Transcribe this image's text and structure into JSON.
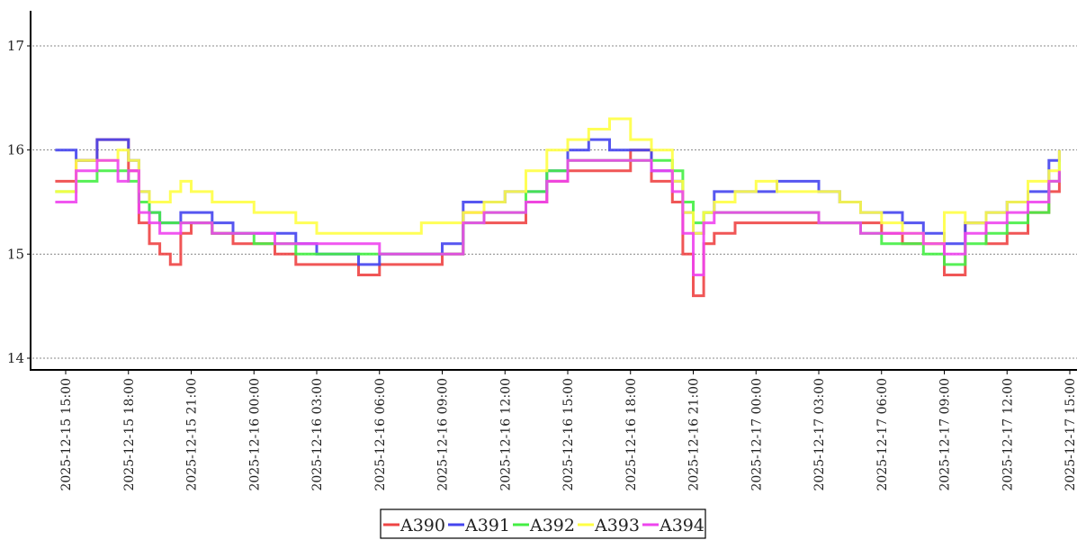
{
  "chart_data": {
    "type": "line",
    "xlabel": "",
    "ylabel": "",
    "ylim": [
      14,
      17.3
    ],
    "yticks": [
      "14",
      "15",
      "16",
      "17"
    ],
    "x_ticks": [
      "2025-12-15 15:00",
      "2025-12-15 18:00",
      "2025-12-15 21:00",
      "2025-12-16 00:00",
      "2025-12-16 03:00",
      "2025-12-16 06:00",
      "2025-12-16 09:00",
      "2025-12-16 12:00",
      "2025-12-16 15:00",
      "2025-12-16 18:00",
      "2025-12-16 21:00",
      "2025-12-17 00:00",
      "2025-12-17 03:00",
      "2025-12-17 06:00",
      "2025-12-17 09:00",
      "2025-12-17 12:00",
      "2025-12-17 15:00"
    ],
    "grid": true,
    "legend": "bottom-center",
    "x": [
      "2025-12-15 14:30",
      "2025-12-15 15:30",
      "2025-12-15 16:30",
      "2025-12-15 17:30",
      "2025-12-15 18:00",
      "2025-12-15 18:30",
      "2025-12-15 19:00",
      "2025-12-15 19:30",
      "2025-12-15 20:00",
      "2025-12-15 20:30",
      "2025-12-15 21:00",
      "2025-12-15 22:00",
      "2025-12-15 23:00",
      "2025-12-16 00:00",
      "2025-12-16 01:00",
      "2025-12-16 02:00",
      "2025-12-16 03:00",
      "2025-12-16 04:00",
      "2025-12-16 05:00",
      "2025-12-16 06:00",
      "2025-12-16 07:00",
      "2025-12-16 08:00",
      "2025-12-16 09:00",
      "2025-12-16 10:00",
      "2025-12-16 11:00",
      "2025-12-16 12:00",
      "2025-12-16 13:00",
      "2025-12-16 14:00",
      "2025-12-16 15:00",
      "2025-12-16 16:00",
      "2025-12-16 17:00",
      "2025-12-16 18:00",
      "2025-12-16 19:00",
      "2025-12-16 20:00",
      "2025-12-16 20:30",
      "2025-12-16 21:00",
      "2025-12-16 21:30",
      "2025-12-16 22:00",
      "2025-12-16 23:00",
      "2025-12-17 00:00",
      "2025-12-17 01:00",
      "2025-12-17 02:00",
      "2025-12-17 03:00",
      "2025-12-17 04:00",
      "2025-12-17 05:00",
      "2025-12-17 06:00",
      "2025-12-17 07:00",
      "2025-12-17 08:00",
      "2025-12-17 09:00",
      "2025-12-17 10:00",
      "2025-12-17 11:00",
      "2025-12-17 12:00",
      "2025-12-17 13:00",
      "2025-12-17 14:00",
      "2025-12-17 14:30"
    ],
    "series": [
      {
        "name": "A390",
        "color": "#ee4444",
        "values": [
          15.7,
          15.9,
          16.1,
          16.1,
          15.8,
          15.3,
          15.1,
          15.0,
          14.9,
          15.2,
          15.3,
          15.2,
          15.1,
          15.1,
          15.0,
          14.9,
          14.9,
          14.9,
          14.8,
          14.9,
          14.9,
          14.9,
          15.0,
          15.4,
          15.3,
          15.3,
          15.5,
          15.7,
          15.8,
          15.8,
          15.8,
          16.0,
          15.7,
          15.5,
          15.0,
          14.6,
          15.1,
          15.2,
          15.3,
          15.3,
          15.3,
          15.3,
          15.3,
          15.3,
          15.3,
          15.2,
          15.1,
          15.1,
          14.8,
          15.3,
          15.1,
          15.2,
          15.4,
          15.6,
          15.8
        ]
      },
      {
        "name": "A391",
        "color": "#4444ee",
        "values": [
          16.0,
          15.9,
          16.1,
          16.1,
          15.9,
          15.6,
          15.4,
          15.3,
          15.3,
          15.4,
          15.4,
          15.3,
          15.2,
          15.2,
          15.2,
          15.1,
          15.0,
          15.0,
          14.9,
          15.0,
          15.0,
          15.0,
          15.1,
          15.5,
          15.5,
          15.6,
          15.6,
          15.8,
          16.0,
          16.1,
          16.0,
          16.0,
          15.8,
          15.7,
          15.4,
          15.2,
          15.4,
          15.6,
          15.6,
          15.6,
          15.7,
          15.7,
          15.6,
          15.5,
          15.4,
          15.4,
          15.3,
          15.2,
          15.1,
          15.3,
          15.4,
          15.5,
          15.6,
          15.9,
          16.0
        ]
      },
      {
        "name": "A392",
        "color": "#44ee44",
        "values": [
          15.6,
          15.7,
          15.8,
          15.8,
          15.7,
          15.5,
          15.4,
          15.3,
          15.3,
          15.3,
          15.3,
          15.2,
          15.2,
          15.1,
          15.1,
          15.0,
          15.0,
          15.0,
          15.0,
          15.0,
          15.0,
          15.0,
          15.0,
          15.3,
          15.4,
          15.4,
          15.6,
          15.8,
          15.9,
          15.9,
          15.9,
          15.9,
          15.9,
          15.8,
          15.5,
          15.3,
          15.4,
          15.4,
          15.4,
          15.4,
          15.4,
          15.4,
          15.3,
          15.3,
          15.2,
          15.1,
          15.1,
          15.0,
          14.9,
          15.1,
          15.2,
          15.3,
          15.4,
          15.7,
          15.9
        ]
      },
      {
        "name": "A393",
        "color": "#ffff44",
        "values": [
          15.6,
          15.9,
          15.9,
          16.0,
          15.9,
          15.6,
          15.5,
          15.5,
          15.6,
          15.7,
          15.6,
          15.5,
          15.5,
          15.4,
          15.4,
          15.3,
          15.2,
          15.2,
          15.2,
          15.2,
          15.2,
          15.3,
          15.3,
          15.4,
          15.5,
          15.6,
          15.8,
          16.0,
          16.1,
          16.2,
          16.3,
          16.1,
          16.0,
          15.7,
          15.4,
          15.2,
          15.4,
          15.5,
          15.6,
          15.7,
          15.6,
          15.6,
          15.6,
          15.5,
          15.4,
          15.3,
          15.2,
          15.1,
          15.4,
          15.3,
          15.4,
          15.5,
          15.7,
          15.8,
          16.0
        ]
      },
      {
        "name": "A394",
        "color": "#ee44ee",
        "values": [
          15.5,
          15.8,
          15.9,
          15.7,
          15.8,
          15.4,
          15.3,
          15.2,
          15.2,
          15.3,
          15.3,
          15.2,
          15.2,
          15.2,
          15.1,
          15.1,
          15.1,
          15.1,
          15.1,
          15.0,
          15.0,
          15.0,
          15.0,
          15.3,
          15.4,
          15.4,
          15.5,
          15.7,
          15.9,
          15.9,
          15.9,
          15.9,
          15.8,
          15.6,
          15.2,
          14.8,
          15.3,
          15.4,
          15.4,
          15.4,
          15.4,
          15.4,
          15.3,
          15.3,
          15.2,
          15.2,
          15.2,
          15.1,
          15.0,
          15.2,
          15.3,
          15.4,
          15.5,
          15.7,
          15.8
        ]
      }
    ]
  }
}
